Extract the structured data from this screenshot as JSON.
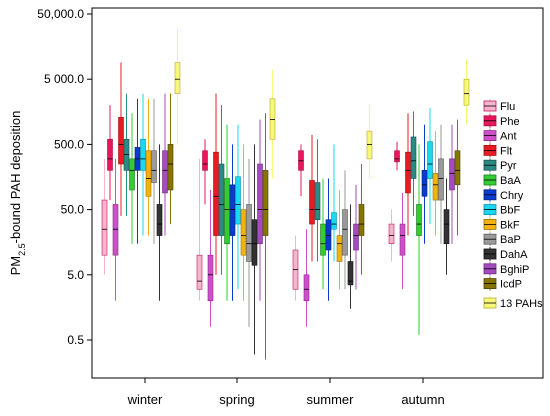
{
  "chart_data": {
    "type": "boxplot",
    "ylabel_prefix": "PM",
    "ylabel_sub": "2.5",
    "ylabel_suffix": "-bound PAH deposition",
    "yscale": "log",
    "ylim": [
      0.1,
      50000
    ],
    "yticks": [
      {
        "value": 0.5,
        "label": "0.5"
      },
      {
        "value": 5,
        "label": "5.0"
      },
      {
        "value": 50,
        "label": "50.0"
      },
      {
        "value": 500,
        "label": "500.0"
      },
      {
        "value": 5000,
        "label": "5 000.0"
      },
      {
        "value": 50000,
        "label": "50,000.0"
      }
    ],
    "categories": [
      "winter",
      "spring",
      "summer",
      "autumn"
    ],
    "legend_placement": "right",
    "series": [
      {
        "name": "Flu",
        "color": "#f6b4cf",
        "edge": "#c2185b",
        "stats": [
          [
            5,
            10,
            25,
            70,
            300
          ],
          [
            2,
            3,
            4,
            10,
            300
          ],
          [
            2,
            3,
            6,
            12,
            20
          ],
          [
            8,
            15,
            20,
            30,
            50
          ]
        ]
      },
      {
        "name": "Phe",
        "color": "#e8175d",
        "edge": "#b00b44",
        "stats": [
          [
            70,
            200,
            300,
            600,
            2000
          ],
          [
            60,
            200,
            250,
            400,
            600
          ],
          [
            80,
            200,
            280,
            400,
            500
          ],
          [
            200,
            270,
            300,
            400,
            550
          ]
        ]
      },
      {
        "name": "Ant",
        "color": "#cf4fc9",
        "edge": "#8e2a8a",
        "stats": [
          [
            2,
            10,
            25,
            60,
            300
          ],
          [
            0.8,
            2,
            5,
            10,
            100
          ],
          [
            0.8,
            2,
            3,
            5,
            25
          ],
          [
            3,
            10,
            20,
            30,
            90
          ]
        ]
      },
      {
        "name": "Flt",
        "color": "#e81b24",
        "edge": "#a50f15",
        "stats": [
          [
            40,
            250,
            500,
            1300,
            9000
          ],
          [
            5,
            20,
            80,
            380,
            3000
          ],
          [
            8,
            30,
            50,
            140,
            700
          ],
          [
            20,
            90,
            200,
            380,
            1500
          ]
        ]
      },
      {
        "name": "Pyr",
        "color": "#2a8a84",
        "edge": "#16524f",
        "stats": [
          [
            40,
            200,
            350,
            600,
            3000
          ],
          [
            5,
            20,
            60,
            250,
            2000
          ],
          [
            8,
            35,
            50,
            130,
            600
          ],
          [
            40,
            150,
            280,
            650,
            1600
          ]
        ]
      },
      {
        "name": "BaA",
        "color": "#32cd32",
        "edge": "#1f7a1f",
        "stats": [
          [
            15,
            100,
            200,
            300,
            1500
          ],
          [
            2,
            15,
            50,
            150,
            1000
          ],
          [
            3,
            10,
            15,
            30,
            150
          ],
          [
            0.6,
            20,
            30,
            60,
            500
          ]
        ]
      },
      {
        "name": "Chry",
        "color": "#0a3bd1",
        "edge": "#06257f",
        "stats": [
          [
            15,
            200,
            300,
            450,
            2500
          ],
          [
            2,
            20,
            50,
            120,
            500
          ],
          [
            2,
            12,
            20,
            35,
            150
          ],
          [
            15,
            80,
            120,
            200,
            1000
          ]
        ]
      },
      {
        "name": "BbF",
        "color": "#17d9f2",
        "edge": "#0a8fa1",
        "stats": [
          [
            20,
            200,
            300,
            600,
            3000
          ],
          [
            3,
            30,
            60,
            160,
            1000
          ],
          [
            8,
            25,
            30,
            45,
            500
          ],
          [
            30,
            150,
            250,
            550,
            1800
          ]
        ]
      },
      {
        "name": "BkF",
        "color": "#f3b20e",
        "edge": "#a07106",
        "stats": [
          [
            20,
            80,
            150,
            400,
            2500
          ],
          [
            2,
            10,
            20,
            50,
            500
          ],
          [
            3,
            8,
            15,
            20,
            100
          ],
          [
            20,
            70,
            120,
            180,
            800
          ]
        ]
      },
      {
        "name": "BaP",
        "color": "#9a9a9a",
        "edge": "#5e5e5e",
        "stats": [
          [
            15,
            130,
            200,
            400,
            2500
          ],
          [
            0.8,
            8,
            15,
            60,
            300
          ],
          [
            3,
            10,
            25,
            50,
            200
          ],
          [
            15,
            70,
            150,
            300,
            1000
          ]
        ]
      },
      {
        "name": "DahA",
        "color": "#333333",
        "edge": "#111111",
        "stats": [
          [
            2,
            20,
            30,
            60,
            500
          ],
          [
            0.3,
            7,
            15,
            35,
            500
          ],
          [
            1.5,
            3.5,
            4,
            8,
            60
          ],
          [
            5,
            15,
            30,
            50,
            150
          ]
        ]
      },
      {
        "name": "BghiP",
        "color": "#a44bbf",
        "edge": "#6b2a80",
        "stats": [
          [
            20,
            90,
            200,
            400,
            3000
          ],
          [
            2,
            15,
            50,
            250,
            1200
          ],
          [
            3,
            12,
            20,
            30,
            120
          ],
          [
            15,
            100,
            180,
            300,
            1000
          ]
        ]
      },
      {
        "name": "IcdP",
        "color": "#857400",
        "edge": "#4f4500",
        "stats": [
          [
            30,
            100,
            250,
            500,
            3000
          ],
          [
            0.25,
            20,
            50,
            200,
            1500
          ],
          [
            5,
            20,
            30,
            60,
            250
          ],
          [
            20,
            120,
            200,
            400,
            1200
          ]
        ]
      },
      {
        "name": "13 PAHs",
        "color": "#f7f77a",
        "edge": "#b5ad2f",
        "stats": [
          [
            500,
            3000,
            5000,
            9000,
            30000
          ],
          [
            150,
            600,
            1200,
            2500,
            7000
          ],
          [
            150,
            300,
            500,
            800,
            2000
          ],
          [
            1000,
            2000,
            3000,
            5000,
            10000
          ]
        ]
      }
    ]
  }
}
